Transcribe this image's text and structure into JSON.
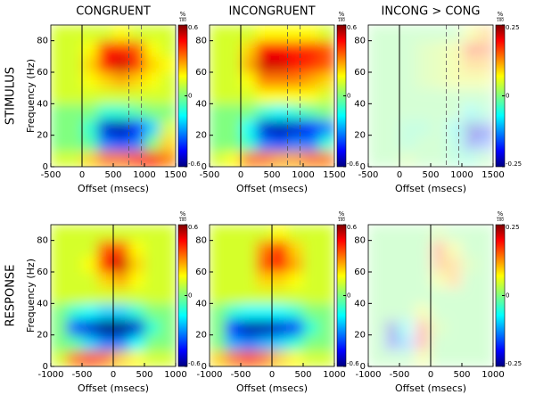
{
  "column_titles": [
    "CONGRUENT",
    "INCONGRUENT",
    "INCONG > CONG"
  ],
  "row_titles": [
    "STIMULUS",
    "RESPONSE"
  ],
  "chart_data": [
    {
      "type": "heatmap",
      "row": 0,
      "col": 0,
      "xlabel": "Offset (msecs)",
      "ylabel": "Frequency (Hz)",
      "x_bins": [
        -500,
        -250,
        0,
        250,
        500,
        750,
        1000,
        1250,
        1500
      ],
      "y_bins": [
        0,
        10,
        20,
        30,
        40,
        50,
        60,
        70,
        80,
        90
      ],
      "z": [
        [
          0.1,
          0.1,
          0.2,
          0.3,
          0.3,
          0.35,
          0.4,
          0.3
        ],
        [
          0,
          0,
          -0.05,
          -0.3,
          -0.35,
          -0.3,
          0,
          0.2
        ],
        [
          0,
          0,
          -0.1,
          -0.5,
          -0.55,
          -0.45,
          -0.2,
          0.1
        ],
        [
          0,
          0,
          0,
          -0.1,
          -0.1,
          -0.05,
          0,
          0
        ],
        [
          0.1,
          0.1,
          0.1,
          0.1,
          0.1,
          0.1,
          0.1,
          0.1
        ],
        [
          0.1,
          0.1,
          0.15,
          0.2,
          0.25,
          0.2,
          0.15,
          0.1
        ],
        [
          0.1,
          0.1,
          0.2,
          0.45,
          0.5,
          0.4,
          0.2,
          0.15
        ],
        [
          0.1,
          0.1,
          0.15,
          0.4,
          0.4,
          0.35,
          0.15,
          0.1
        ],
        [
          0.1,
          0.1,
          0.1,
          0.1,
          0.15,
          0.1,
          0.1,
          0.1
        ]
      ],
      "xlim": [
        -500,
        1500
      ],
      "ylim": [
        0,
        90
      ],
      "xticks": [
        -500,
        0,
        500,
        1000,
        1500
      ],
      "yticks": [
        0,
        20,
        40,
        60,
        80
      ],
      "clim": [
        -0.6,
        0.6
      ],
      "cticks": [
        -0.6,
        0,
        0.6
      ],
      "cbar_unit": "%",
      "cbar_unit_denominator": "100",
      "vlines": [
        0
      ],
      "dashed_vlines": [
        750,
        950
      ],
      "faded": false
    },
    {
      "type": "heatmap",
      "row": 0,
      "col": 1,
      "xlabel": "Offset (msecs)",
      "x_bins": [
        -500,
        -250,
        0,
        250,
        500,
        750,
        1000,
        1250,
        1500
      ],
      "y_bins": [
        0,
        10,
        20,
        30,
        40,
        50,
        60,
        70,
        80,
        90
      ],
      "z": [
        [
          0.1,
          0.15,
          0.3,
          0.3,
          0.25,
          0.25,
          0.3,
          0.3
        ],
        [
          0,
          0,
          -0.1,
          -0.3,
          -0.35,
          -0.3,
          -0.3,
          -0.1
        ],
        [
          0,
          0,
          -0.15,
          -0.5,
          -0.55,
          -0.5,
          -0.45,
          -0.3
        ],
        [
          0,
          0,
          0,
          -0.1,
          -0.15,
          -0.1,
          -0.05,
          0
        ],
        [
          0.1,
          0.1,
          0.1,
          0.15,
          0.15,
          0.15,
          0.15,
          0.1
        ],
        [
          0.1,
          0.1,
          0.15,
          0.3,
          0.3,
          0.3,
          0.25,
          0.2
        ],
        [
          0.1,
          0.1,
          0.25,
          0.5,
          0.5,
          0.45,
          0.4,
          0.35
        ],
        [
          0.1,
          0.1,
          0.2,
          0.45,
          0.45,
          0.4,
          0.4,
          0.35
        ],
        [
          0.1,
          0.1,
          0.1,
          0.15,
          0.15,
          0.15,
          0.15,
          0.1
        ]
      ],
      "xlim": [
        -500,
        1500
      ],
      "ylim": [
        0,
        90
      ],
      "xticks": [
        -500,
        0,
        500,
        1000,
        1500
      ],
      "yticks": [
        0,
        20,
        40,
        60,
        80
      ],
      "clim": [
        -0.6,
        0.6
      ],
      "cticks": [
        -0.6,
        0,
        0.6
      ],
      "cbar_unit": "%",
      "cbar_unit_denominator": "100",
      "vlines": [
        0
      ],
      "dashed_vlines": [
        750,
        950
      ],
      "faded": false
    },
    {
      "type": "heatmap",
      "row": 0,
      "col": 2,
      "xlabel": "Offset (msecs)",
      "x_bins": [
        -500,
        -250,
        0,
        250,
        500,
        750,
        1000,
        1250,
        1500
      ],
      "y_bins": [
        0,
        10,
        20,
        30,
        40,
        50,
        60,
        70,
        80,
        90
      ],
      "z": [
        [
          0,
          0,
          0.02,
          0,
          0,
          -0.02,
          -0.03,
          0
        ],
        [
          0,
          0,
          -0.02,
          0,
          0,
          -0.03,
          -0.2,
          -0.15
        ],
        [
          0,
          0,
          -0.02,
          -0.02,
          0,
          -0.05,
          -0.22,
          -0.2
        ],
        [
          0,
          0,
          0,
          0,
          0,
          0,
          -0.05,
          -0.02
        ],
        [
          0,
          0,
          0,
          0,
          0,
          0,
          0,
          0
        ],
        [
          0,
          0,
          0,
          0.02,
          0.03,
          0.05,
          0.05,
          0.05
        ],
        [
          0,
          0,
          0,
          0.02,
          0.03,
          0.05,
          0.1,
          0.1
        ],
        [
          0,
          0,
          0,
          0.02,
          0.03,
          0.05,
          0.18,
          0.15
        ],
        [
          0,
          0,
          0,
          0,
          0,
          0,
          0.05,
          0.1
        ]
      ],
      "xlim": [
        -500,
        1500
      ],
      "ylim": [
        0,
        90
      ],
      "xticks": [
        -500,
        0,
        500,
        1000,
        1500
      ],
      "yticks": [
        0,
        20,
        40,
        60,
        80
      ],
      "clim": [
        -0.25,
        0.25
      ],
      "cticks": [
        -0.25,
        0,
        0.25
      ],
      "cbar_unit": "%",
      "cbar_unit_denominator": "100",
      "vlines": [
        0
      ],
      "dashed_vlines": [
        750,
        950
      ],
      "faded": true
    },
    {
      "type": "heatmap",
      "row": 1,
      "col": 0,
      "xlabel": "Offset (msecs)",
      "ylabel": "Frequency (Hz)",
      "x_bins": [
        -1000,
        -750,
        -500,
        -250,
        0,
        250,
        500,
        750,
        1000
      ],
      "y_bins": [
        0,
        10,
        20,
        30,
        40,
        50,
        60,
        70,
        80,
        90
      ],
      "z": [
        [
          0.1,
          0.3,
          0.35,
          0.3,
          0.2,
          0.15,
          0.1,
          0.1
        ],
        [
          0,
          -0.05,
          -0.2,
          -0.3,
          -0.3,
          -0.15,
          0,
          0
        ],
        [
          0,
          -0.35,
          -0.5,
          -0.6,
          -0.6,
          -0.5,
          -0.1,
          0
        ],
        [
          0,
          -0.1,
          -0.15,
          -0.2,
          -0.2,
          -0.1,
          0,
          0
        ],
        [
          0.1,
          0.1,
          0.1,
          0.1,
          0.1,
          0.1,
          0.1,
          0.1
        ],
        [
          0.1,
          0.1,
          0.1,
          0.2,
          0.25,
          0.15,
          0.1,
          0.1
        ],
        [
          0.1,
          0.1,
          0.15,
          0.45,
          0.5,
          0.2,
          0.1,
          0.1
        ],
        [
          0.1,
          0.1,
          0.1,
          0.35,
          0.35,
          0.15,
          0.1,
          0.1
        ],
        [
          0.1,
          0.1,
          0.1,
          0.1,
          0.1,
          0.1,
          0.1,
          0.1
        ]
      ],
      "xlim": [
        -1000,
        1000
      ],
      "ylim": [
        0,
        90
      ],
      "xticks": [
        -1000,
        -500,
        0,
        500,
        1000
      ],
      "yticks": [
        0,
        20,
        40,
        60,
        80
      ],
      "clim": [
        -0.6,
        0.6
      ],
      "cticks": [
        -0.6,
        0,
        0.6
      ],
      "cbar_unit": "%",
      "cbar_unit_denominator": "100",
      "vlines": [
        0
      ],
      "dashed_vlines": [],
      "faded": false
    },
    {
      "type": "heatmap",
      "row": 1,
      "col": 1,
      "xlabel": "Offset (msecs)",
      "x_bins": [
        -1000,
        -750,
        -500,
        -250,
        0,
        250,
        500,
        750,
        1000
      ],
      "y_bins": [
        0,
        10,
        20,
        30,
        40,
        50,
        60,
        70,
        80,
        90
      ],
      "z": [
        [
          0.2,
          0.3,
          0.35,
          0.3,
          0.2,
          0.15,
          0.1,
          0.1
        ],
        [
          0,
          -0.25,
          -0.3,
          -0.25,
          -0.2,
          -0.1,
          0,
          0
        ],
        [
          0,
          -0.45,
          -0.55,
          -0.55,
          -0.5,
          -0.4,
          -0.1,
          0
        ],
        [
          0,
          -0.1,
          -0.15,
          -0.15,
          -0.15,
          -0.1,
          0,
          0
        ],
        [
          0.1,
          0.1,
          0.1,
          0.1,
          0.1,
          0.1,
          0.1,
          0.1
        ],
        [
          0.1,
          0.1,
          0.1,
          0.2,
          0.2,
          0.15,
          0.1,
          0.1
        ],
        [
          0.1,
          0.1,
          0.1,
          0.35,
          0.45,
          0.25,
          0.1,
          0.1
        ],
        [
          0.1,
          0.1,
          0.1,
          0.3,
          0.4,
          0.2,
          0.1,
          0.1
        ],
        [
          0.1,
          0.1,
          0.1,
          0.1,
          0.15,
          0.1,
          0.1,
          0.1
        ]
      ],
      "xlim": [
        -1000,
        1000
      ],
      "ylim": [
        0,
        90
      ],
      "xticks": [
        -1000,
        -500,
        0,
        500,
        1000
      ],
      "yticks": [
        0,
        20,
        40,
        60,
        80
      ],
      "clim": [
        -0.6,
        0.6
      ],
      "cticks": [
        -0.6,
        0,
        0.6
      ],
      "cbar_unit": "%",
      "cbar_unit_denominator": "100",
      "vlines": [
        0
      ],
      "dashed_vlines": [],
      "faded": false
    },
    {
      "type": "heatmap",
      "row": 1,
      "col": 2,
      "xlabel": "Offset (msecs)",
      "x_bins": [
        -1000,
        -750,
        -500,
        -250,
        0,
        250,
        500,
        750,
        1000
      ],
      "y_bins": [
        0,
        10,
        20,
        30,
        40,
        50,
        60,
        70,
        80,
        90
      ],
      "z": [
        [
          0,
          0,
          0,
          0.05,
          0,
          0,
          0,
          0
        ],
        [
          0,
          -0.2,
          -0.1,
          0.15,
          0,
          0,
          0,
          0
        ],
        [
          0,
          -0.22,
          -0.05,
          0.15,
          0.02,
          0,
          0,
          0
        ],
        [
          0,
          0,
          0,
          0.05,
          0,
          0,
          0,
          0
        ],
        [
          0,
          0,
          0,
          0,
          0,
          0,
          0,
          0
        ],
        [
          0,
          0,
          0,
          0,
          0.05,
          0.1,
          0,
          0
        ],
        [
          0,
          0,
          0,
          0,
          0.12,
          0.1,
          0.02,
          0
        ],
        [
          0,
          0,
          0,
          0,
          0.15,
          0.05,
          0,
          0
        ],
        [
          0,
          0,
          0,
          0,
          0.02,
          0,
          0,
          0
        ]
      ],
      "xlim": [
        -1000,
        1000
      ],
      "ylim": [
        0,
        90
      ],
      "xticks": [
        -1000,
        -500,
        0,
        500,
        1000
      ],
      "yticks": [
        0,
        20,
        40,
        60,
        80
      ],
      "clim": [
        -0.25,
        0.25
      ],
      "cticks": [
        -0.25,
        0,
        0.25
      ],
      "cbar_unit": "%",
      "cbar_unit_denominator": "100",
      "vlines": [
        0
      ],
      "dashed_vlines": [],
      "faded": true
    }
  ]
}
